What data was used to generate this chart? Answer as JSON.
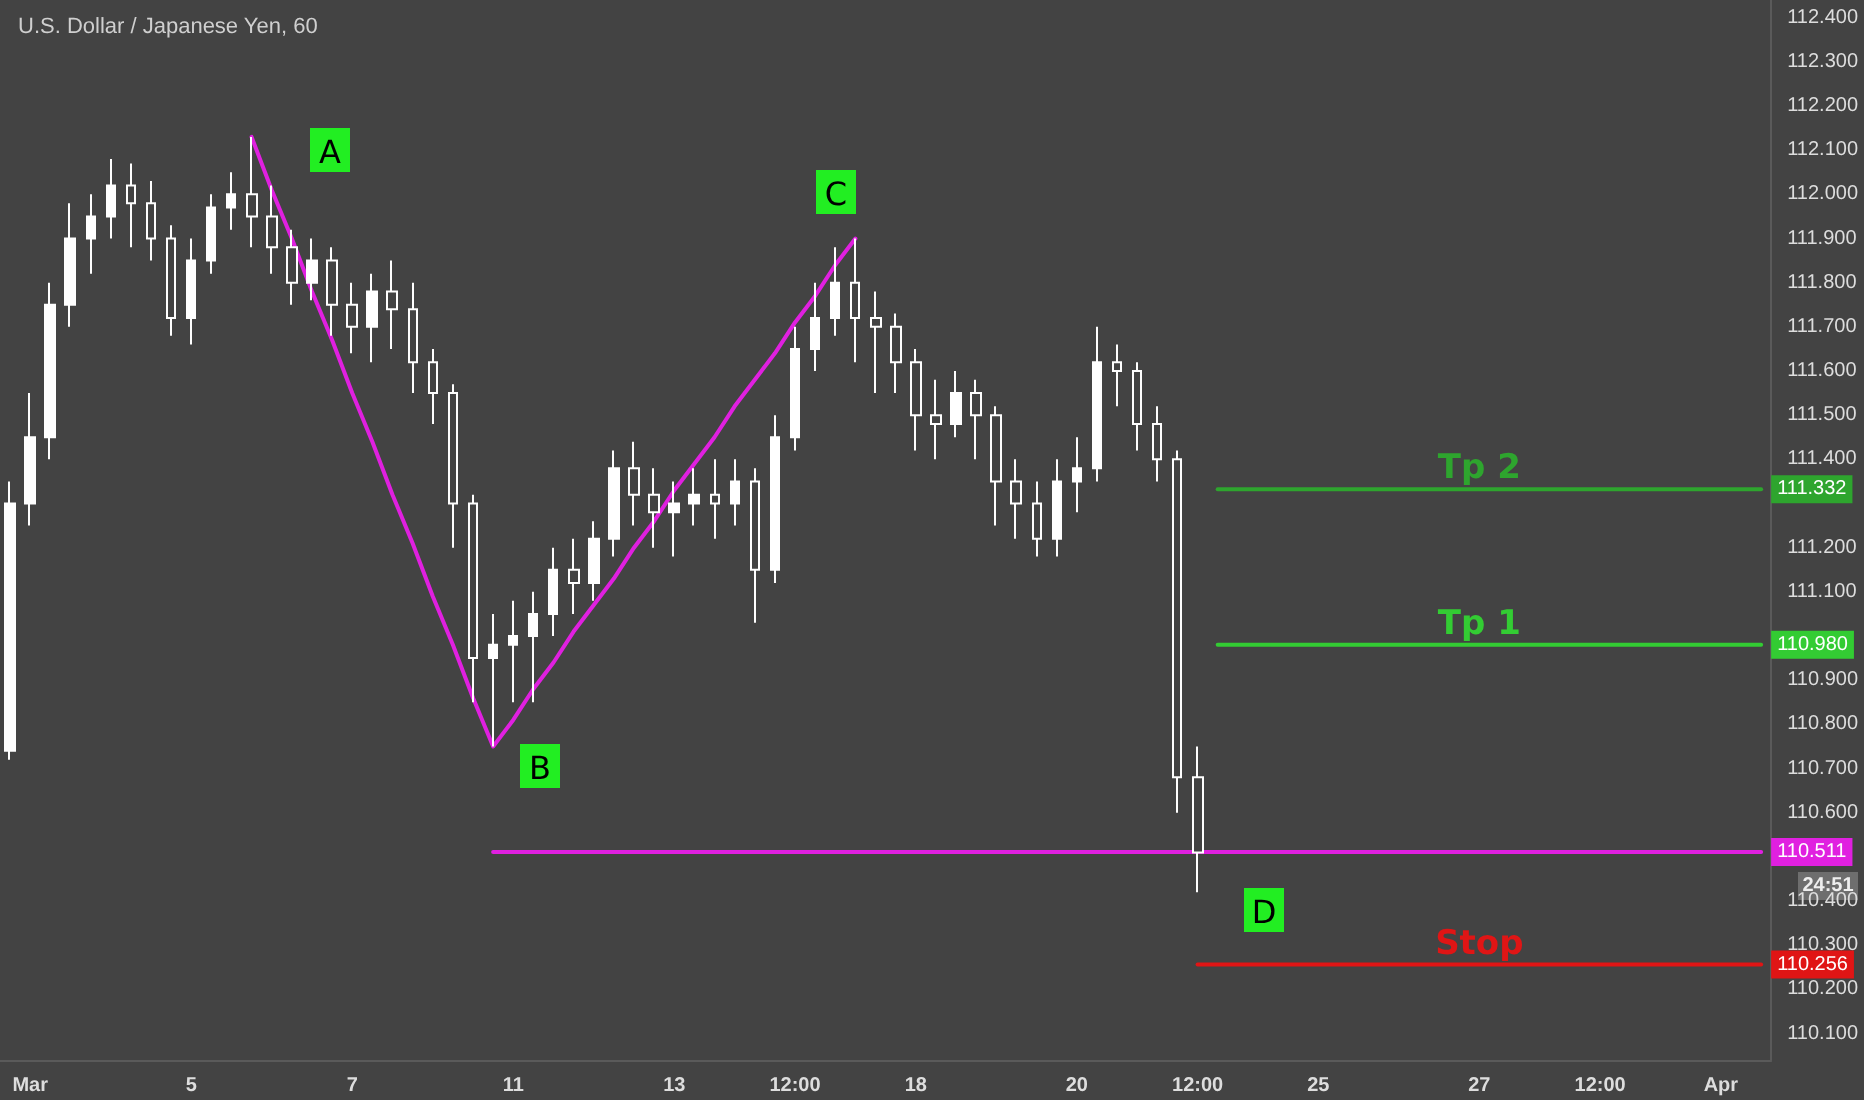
{
  "chart_data": {
    "type": "candlestick",
    "title": "U.S. Dollar / Japanese Yen, 60",
    "color": "#ffffff",
    "categories": [
      null,
      "Mar",
      null,
      null,
      null,
      null,
      null,
      null,
      null,
      "5",
      null,
      null,
      null,
      null,
      null,
      null,
      null,
      "7",
      null,
      null,
      null,
      null,
      null,
      null,
      null,
      "11",
      null,
      null,
      null,
      null,
      null,
      null,
      null,
      "13",
      null,
      null,
      null,
      null,
      null,
      "12:00",
      null,
      null,
      null,
      null,
      null,
      "18",
      null,
      null,
      null,
      null,
      null,
      null,
      null,
      "20",
      null,
      null,
      null,
      null,
      null,
      "12:00",
      null,
      null,
      null,
      null,
      null,
      "25",
      null,
      null,
      null,
      null,
      null,
      null,
      null,
      "27",
      null,
      null,
      null,
      null,
      null,
      "12:00",
      null,
      null,
      null,
      null,
      null,
      "Apr",
      null,
      null
    ],
    "ohlc": [
      [
        110.74,
        111.35,
        110.72,
        111.3
      ],
      [
        111.3,
        111.55,
        111.25,
        111.45
      ],
      [
        111.45,
        111.8,
        111.4,
        111.75
      ],
      [
        111.75,
        111.98,
        111.7,
        111.9
      ],
      [
        111.9,
        112.0,
        111.82,
        111.95
      ],
      [
        111.95,
        112.08,
        111.9,
        112.02
      ],
      [
        112.02,
        112.07,
        111.88,
        111.98
      ],
      [
        111.98,
        112.03,
        111.85,
        111.9
      ],
      [
        111.9,
        111.93,
        111.68,
        111.72
      ],
      [
        111.72,
        111.9,
        111.66,
        111.85
      ],
      [
        111.85,
        112.0,
        111.82,
        111.97
      ],
      [
        111.97,
        112.05,
        111.92,
        112.0
      ],
      [
        112.0,
        112.13,
        111.88,
        111.95
      ],
      [
        111.95,
        112.02,
        111.82,
        111.88
      ],
      [
        111.88,
        111.92,
        111.75,
        111.8
      ],
      [
        111.8,
        111.9,
        111.76,
        111.85
      ],
      [
        111.85,
        111.88,
        111.68,
        111.75
      ],
      [
        111.75,
        111.8,
        111.64,
        111.7
      ],
      [
        111.7,
        111.82,
        111.62,
        111.78
      ],
      [
        111.78,
        111.85,
        111.65,
        111.74
      ],
      [
        111.74,
        111.8,
        111.55,
        111.62
      ],
      [
        111.62,
        111.65,
        111.48,
        111.55
      ],
      [
        111.55,
        111.57,
        111.2,
        111.3
      ],
      [
        111.3,
        111.32,
        110.85,
        110.95
      ],
      [
        110.95,
        111.05,
        110.75,
        110.98
      ],
      [
        110.98,
        111.08,
        110.85,
        111.0
      ],
      [
        111.0,
        111.1,
        110.85,
        111.05
      ],
      [
        111.05,
        111.2,
        111.0,
        111.15
      ],
      [
        111.15,
        111.22,
        111.05,
        111.12
      ],
      [
        111.12,
        111.26,
        111.08,
        111.22
      ],
      [
        111.22,
        111.42,
        111.18,
        111.38
      ],
      [
        111.38,
        111.44,
        111.25,
        111.32
      ],
      [
        111.32,
        111.38,
        111.2,
        111.28
      ],
      [
        111.28,
        111.35,
        111.18,
        111.3
      ],
      [
        111.3,
        111.38,
        111.25,
        111.32
      ],
      [
        111.32,
        111.4,
        111.22,
        111.3
      ],
      [
        111.3,
        111.4,
        111.25,
        111.35
      ],
      [
        111.35,
        111.38,
        111.03,
        111.15
      ],
      [
        111.15,
        111.5,
        111.12,
        111.45
      ],
      [
        111.45,
        111.7,
        111.42,
        111.65
      ],
      [
        111.65,
        111.8,
        111.6,
        111.72
      ],
      [
        111.72,
        111.88,
        111.68,
        111.8
      ],
      [
        111.8,
        111.9,
        111.62,
        111.72
      ],
      [
        111.72,
        111.78,
        111.55,
        111.7
      ],
      [
        111.7,
        111.73,
        111.55,
        111.62
      ],
      [
        111.62,
        111.65,
        111.42,
        111.5
      ],
      [
        111.5,
        111.58,
        111.4,
        111.48
      ],
      [
        111.48,
        111.6,
        111.45,
        111.55
      ],
      [
        111.55,
        111.58,
        111.4,
        111.5
      ],
      [
        111.5,
        111.52,
        111.25,
        111.35
      ],
      [
        111.35,
        111.4,
        111.22,
        111.3
      ],
      [
        111.3,
        111.35,
        111.18,
        111.22
      ],
      [
        111.22,
        111.4,
        111.18,
        111.35
      ],
      [
        111.35,
        111.45,
        111.28,
        111.38
      ],
      [
        111.38,
        111.7,
        111.35,
        111.62
      ],
      [
        111.62,
        111.66,
        111.52,
        111.6
      ],
      [
        111.6,
        111.62,
        111.42,
        111.48
      ],
      [
        111.48,
        111.52,
        111.35,
        111.4
      ],
      [
        111.4,
        111.42,
        110.6,
        110.68
      ],
      [
        110.68,
        110.75,
        110.42,
        110.51
      ],
      null,
      null,
      null,
      null,
      null,
      null,
      null,
      null,
      null,
      null,
      null,
      null,
      null,
      null,
      null,
      null,
      null,
      null,
      null,
      null,
      null,
      null,
      null,
      null,
      null,
      null,
      null,
      null
    ],
    "series": [
      {
        "type": "line",
        "color": "#e020e0",
        "values": [
          null,
          null,
          null,
          null,
          null,
          null,
          null,
          null,
          null,
          null,
          null,
          null,
          112.13,
          112.01,
          111.9,
          111.78,
          111.67,
          111.55,
          111.44,
          111.32,
          111.21,
          111.09,
          110.98,
          110.86,
          110.75,
          110.81,
          110.88,
          110.94,
          111.01,
          111.07,
          111.13,
          111.2,
          111.26,
          111.33,
          111.39,
          111.45,
          111.52,
          111.58,
          111.64,
          111.71,
          111.77,
          111.84,
          111.9,
          null,
          null,
          null,
          null,
          null,
          null,
          null,
          null,
          null,
          null,
          null,
          null,
          null,
          null,
          null,
          null,
          null,
          null,
          null,
          null,
          null,
          null,
          null,
          null,
          null,
          null,
          null,
          null,
          null,
          null,
          null,
          null,
          null,
          null,
          null,
          null,
          null,
          null,
          null,
          null,
          null,
          null,
          null,
          null,
          null
        ]
      },
      {
        "type": "line",
        "color": "#e020e0",
        "values": [
          null,
          null,
          null,
          null,
          null,
          null,
          null,
          null,
          null,
          null,
          null,
          null,
          null,
          null,
          null,
          null,
          null,
          null,
          null,
          null,
          null,
          null,
          null,
          null,
          110.511,
          110.511,
          110.511,
          110.511,
          110.511,
          110.511,
          110.511,
          110.511,
          110.511,
          110.511,
          110.511,
          110.511,
          110.511,
          110.511,
          110.511,
          110.511,
          110.511,
          110.511,
          110.511,
          110.511,
          110.511,
          110.511,
          110.511,
          110.511,
          110.511,
          110.511,
          110.511,
          110.511,
          110.511,
          110.511,
          110.511,
          110.511,
          110.511,
          110.511,
          110.511,
          110.511,
          110.511,
          110.511,
          110.511,
          110.511,
          110.511,
          110.511,
          110.511,
          110.511,
          110.511,
          110.511,
          110.511,
          110.511,
          110.511,
          110.511,
          110.511,
          110.511,
          110.511,
          110.511,
          110.511,
          110.511,
          110.511,
          110.511,
          110.511,
          110.511,
          110.511,
          110.511,
          110.511,
          110.511
        ],
        "value_labels": [
          null,
          null,
          null,
          null,
          null,
          null,
          null,
          null,
          null,
          null,
          null,
          null,
          null,
          null,
          null,
          null,
          null,
          null,
          null,
          null,
          null,
          null,
          null,
          null,
          null,
          null,
          null,
          null,
          null,
          null,
          null,
          null,
          null,
          null,
          null,
          null,
          null,
          null,
          null,
          null,
          null,
          null,
          null,
          null,
          null,
          null,
          null,
          null,
          null,
          null,
          null,
          null,
          null,
          null,
          null,
          null,
          null,
          null,
          null,
          null,
          null,
          null,
          null,
          null,
          null,
          null,
          null,
          null,
          null,
          null,
          null,
          null,
          null,
          null,
          null,
          null,
          null,
          null,
          null,
          null,
          null,
          null,
          null,
          null,
          null,
          null,
          null,
          "110.511"
        ]
      },
      {
        "type": "line",
        "name": "Tp 2",
        "color": "#2ea52e",
        "values": [
          null,
          null,
          null,
          null,
          null,
          null,
          null,
          null,
          null,
          null,
          null,
          null,
          null,
          null,
          null,
          null,
          null,
          null,
          null,
          null,
          null,
          null,
          null,
          null,
          null,
          null,
          null,
          null,
          null,
          null,
          null,
          null,
          null,
          null,
          null,
          null,
          null,
          null,
          null,
          null,
          null,
          null,
          null,
          null,
          null,
          null,
          null,
          null,
          null,
          null,
          null,
          null,
          null,
          null,
          null,
          null,
          null,
          null,
          null,
          null,
          111.332,
          111.332,
          111.332,
          111.332,
          111.332,
          111.332,
          111.332,
          111.332,
          111.332,
          111.332,
          111.332,
          111.332,
          111.332,
          111.332,
          111.332,
          111.332,
          111.332,
          111.332,
          111.332,
          111.332,
          111.332,
          111.332,
          111.332,
          111.332,
          111.332,
          111.332,
          111.332,
          111.332
        ],
        "value_labels": [
          null,
          null,
          null,
          null,
          null,
          null,
          null,
          null,
          null,
          null,
          null,
          null,
          null,
          null,
          null,
          null,
          null,
          null,
          null,
          null,
          null,
          null,
          null,
          null,
          null,
          null,
          null,
          null,
          null,
          null,
          null,
          null,
          null,
          null,
          null,
          null,
          null,
          null,
          null,
          null,
          null,
          null,
          null,
          null,
          null,
          null,
          null,
          null,
          null,
          null,
          null,
          null,
          null,
          null,
          null,
          null,
          null,
          null,
          null,
          null,
          null,
          null,
          null,
          null,
          null,
          null,
          null,
          null,
          null,
          null,
          null,
          null,
          null,
          null,
          null,
          null,
          null,
          null,
          null,
          null,
          null,
          null,
          null,
          null,
          null,
          null,
          null,
          "111.332"
        ]
      },
      {
        "type": "line",
        "name": "Tp 1",
        "color": "#33cc33",
        "values": [
          null,
          null,
          null,
          null,
          null,
          null,
          null,
          null,
          null,
          null,
          null,
          null,
          null,
          null,
          null,
          null,
          null,
          null,
          null,
          null,
          null,
          null,
          null,
          null,
          null,
          null,
          null,
          null,
          null,
          null,
          null,
          null,
          null,
          null,
          null,
          null,
          null,
          null,
          null,
          null,
          null,
          null,
          null,
          null,
          null,
          null,
          null,
          null,
          null,
          null,
          null,
          null,
          null,
          null,
          null,
          null,
          null,
          null,
          null,
          null,
          110.98,
          110.98,
          110.98,
          110.98,
          110.98,
          110.98,
          110.98,
          110.98,
          110.98,
          110.98,
          110.98,
          110.98,
          110.98,
          110.98,
          110.98,
          110.98,
          110.98,
          110.98,
          110.98,
          110.98,
          110.98,
          110.98,
          110.98,
          110.98,
          110.98,
          110.98,
          110.98,
          110.98
        ],
        "value_labels": [
          null,
          null,
          null,
          null,
          null,
          null,
          null,
          null,
          null,
          null,
          null,
          null,
          null,
          null,
          null,
          null,
          null,
          null,
          null,
          null,
          null,
          null,
          null,
          null,
          null,
          null,
          null,
          null,
          null,
          null,
          null,
          null,
          null,
          null,
          null,
          null,
          null,
          null,
          null,
          null,
          null,
          null,
          null,
          null,
          null,
          null,
          null,
          null,
          null,
          null,
          null,
          null,
          null,
          null,
          null,
          null,
          null,
          null,
          null,
          null,
          null,
          null,
          null,
          null,
          null,
          null,
          null,
          null,
          null,
          null,
          null,
          null,
          null,
          null,
          null,
          null,
          null,
          null,
          null,
          null,
          null,
          null,
          null,
          null,
          null,
          null,
          null,
          "110.980"
        ]
      },
      {
        "type": "line",
        "name": "Stop",
        "color": "#e01515",
        "values": [
          null,
          null,
          null,
          null,
          null,
          null,
          null,
          null,
          null,
          null,
          null,
          null,
          null,
          null,
          null,
          null,
          null,
          null,
          null,
          null,
          null,
          null,
          null,
          null,
          null,
          null,
          null,
          null,
          null,
          null,
          null,
          null,
          null,
          null,
          null,
          null,
          null,
          null,
          null,
          null,
          null,
          null,
          null,
          null,
          null,
          null,
          null,
          null,
          null,
          null,
          null,
          null,
          null,
          null,
          null,
          null,
          null,
          null,
          null,
          110.256,
          110.256,
          110.256,
          110.256,
          110.256,
          110.256,
          110.256,
          110.256,
          110.256,
          110.256,
          110.256,
          110.256,
          110.256,
          110.256,
          110.256,
          110.256,
          110.256,
          110.256,
          110.256,
          110.256,
          110.256,
          110.256,
          110.256,
          110.256,
          110.256,
          110.256,
          110.256,
          110.256,
          110.256
        ],
        "value_labels": [
          null,
          null,
          null,
          null,
          null,
          null,
          null,
          null,
          null,
          null,
          null,
          null,
          null,
          null,
          null,
          null,
          null,
          null,
          null,
          null,
          null,
          null,
          null,
          null,
          null,
          null,
          null,
          null,
          null,
          null,
          null,
          null,
          null,
          null,
          null,
          null,
          null,
          null,
          null,
          null,
          null,
          null,
          null,
          null,
          null,
          null,
          null,
          null,
          null,
          null,
          null,
          null,
          null,
          null,
          null,
          null,
          null,
          null,
          null,
          null,
          null,
          null,
          null,
          null,
          null,
          null,
          null,
          null,
          null,
          null,
          null,
          null,
          null,
          null,
          null,
          null,
          null,
          null,
          null,
          null,
          null,
          null,
          null,
          null,
          null,
          null,
          null,
          "110.256"
        ]
      }
    ],
    "marker": "none",
    "line_style": "solid",
    "ylim": [
      110.04,
      112.44
    ],
    "yticks": [
      {
        "value": 110.1,
        "label": "110.100"
      },
      {
        "value": 110.2,
        "label": "110.200"
      },
      {
        "value": 110.3,
        "label": "110.300"
      },
      {
        "value": 110.4,
        "label": "110.400"
      },
      {
        "value": 110.6,
        "label": "110.600"
      },
      {
        "value": 110.7,
        "label": "110.700"
      },
      {
        "value": 110.8,
        "label": "110.800"
      },
      {
        "value": 110.9,
        "label": "110.900"
      },
      {
        "value": 111.1,
        "label": "111.100"
      },
      {
        "value": 111.2,
        "label": "111.200"
      },
      {
        "value": 111.4,
        "label": "111.400"
      },
      {
        "value": 111.5,
        "label": "111.500"
      },
      {
        "value": 111.6,
        "label": "111.600"
      },
      {
        "value": 111.7,
        "label": "111.700"
      },
      {
        "value": 111.8,
        "label": "111.800"
      },
      {
        "value": 111.9,
        "label": "111.900"
      },
      {
        "value": 112.0,
        "label": "112.000"
      },
      {
        "value": 112.1,
        "label": "112.100"
      },
      {
        "value": 112.2,
        "label": "112.200"
      },
      {
        "value": 112.3,
        "label": "112.300"
      },
      {
        "value": 112.4,
        "label": "112.400"
      }
    ],
    "annotations": [
      "A",
      "B",
      "C",
      "D",
      "24:51"
    ]
  }
}
